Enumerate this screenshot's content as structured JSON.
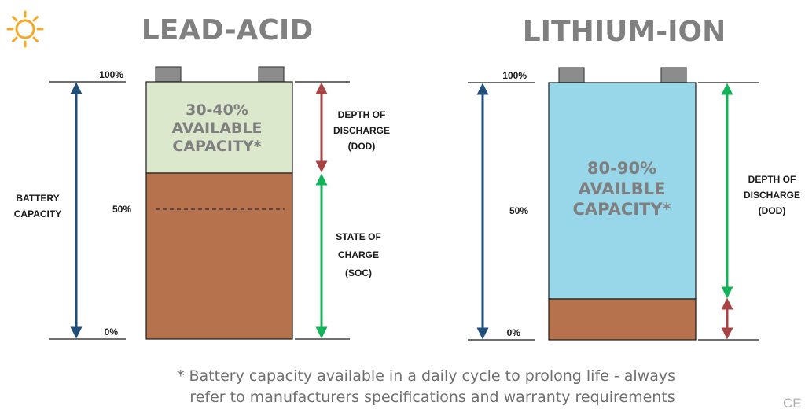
{
  "colors": {
    "accent_sun": "#f4a825",
    "available_green": "#dce8cc",
    "soc_brown": "#b6714d",
    "lithium_blue": "#98d7ea",
    "arrow_navy": "#1f4e79",
    "arrow_red": "#a94343",
    "arrow_green": "#13b35a",
    "terminal_gray": "#8c8c8c"
  },
  "icons": {
    "logo": "sun-icon"
  },
  "lead_acid": {
    "title": "LEAD-ACID",
    "tick_100": "100%",
    "tick_50": "50%",
    "tick_0": "0%",
    "capacity_label_line1": "BATTERY",
    "capacity_label_line2": "CAPACITY",
    "available_line1": "30-40%",
    "available_line2": "AVAILABLE",
    "available_line3": "CAPACITY*",
    "dod_line1": "DEPTH OF",
    "dod_line2": "DISCHARGE",
    "dod_line3": "(DOD)",
    "soc_line1": "STATE OF",
    "soc_line2": "CHARGE",
    "soc_line3": "(SOC)"
  },
  "lithium_ion": {
    "title": "LITHIUM-ION",
    "tick_100": "100%",
    "tick_50": "50%",
    "tick_0": "0%",
    "available_line1": "80-90%",
    "available_line2": "AVAILBLE",
    "available_line3": "CAPACITY*",
    "dod_line1": "DEPTH OF",
    "dod_line2": "DISCHARGE",
    "dod_line3": "(DOD)"
  },
  "footnote": {
    "line1": "* Battery capacity available in a daily cycle to prolong life - always",
    "line2": "refer to manufacturers specifications and warranty requirements"
  },
  "watermark": "CE"
}
